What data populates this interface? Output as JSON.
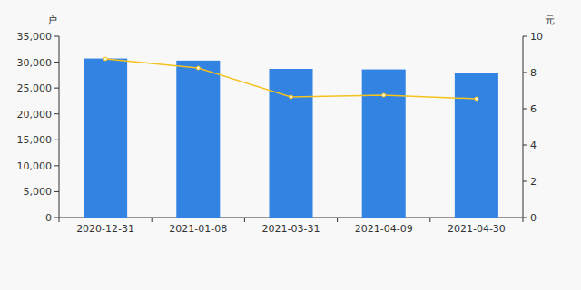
{
  "chart_data": {
    "type": "bar",
    "ylabel": "户",
    "y2label": "元",
    "categories": [
      "2020-12-31",
      "2021-01-08",
      "2021-03-31",
      "2021-04-09",
      "2021-04-30"
    ],
    "series": [
      {
        "type": "bar",
        "color": "#3383e3",
        "values": [
          30700,
          30300,
          28700,
          28600,
          28000
        ]
      },
      {
        "type": "line",
        "axis": "y2",
        "color": "#f5c21b",
        "marker": "circle",
        "values": [
          8.75,
          8.25,
          6.65,
          6.75,
          6.55
        ]
      }
    ],
    "ylim": [
      0,
      35000
    ],
    "yticks": [
      0,
      {
        "value": 5000,
        "label": "5,000"
      },
      {
        "value": 10000,
        "label": "10,000"
      },
      {
        "value": 15000,
        "label": "15,000"
      },
      {
        "value": 20000,
        "label": "20,000"
      },
      {
        "value": 25000,
        "label": "25,000"
      },
      {
        "value": 30000,
        "label": "30,000"
      },
      {
        "value": 35000,
        "label": "35,000"
      }
    ],
    "y2lim": [
      0,
      10
    ],
    "y2ticks": [
      0,
      2,
      4,
      6,
      8,
      10
    ],
    "grid": false
  }
}
